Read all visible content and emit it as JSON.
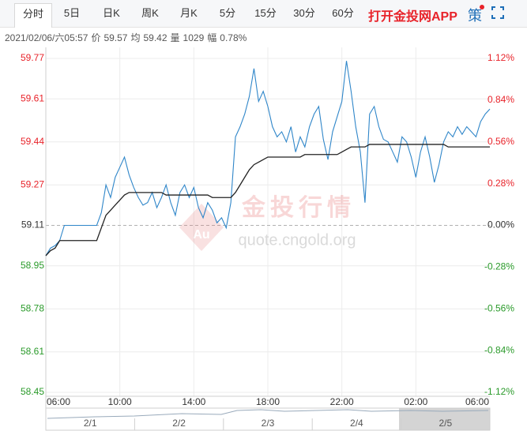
{
  "tabs": [
    "分时",
    "5日",
    "日K",
    "周K",
    "月K",
    "5分",
    "15分",
    "30分",
    "60分"
  ],
  "app_link": "打开金投网APP",
  "strategy_icon": "策",
  "info": {
    "datetime": "2021/02/06/六05:57",
    "items": [
      {
        "label": "价",
        "value": "59.57"
      },
      {
        "label": "均",
        "value": "59.42"
      },
      {
        "label": "量",
        "value": "1029"
      },
      {
        "label": "幅",
        "value": "0.78%"
      }
    ]
  },
  "watermark": {
    "title": "金投行情",
    "url": "quote.cngold.org",
    "logo": "Au"
  },
  "navigator": {
    "labels": [
      "2/1",
      "2/2",
      "2/3",
      "2/4",
      "2/5"
    ]
  },
  "chart_data": {
    "type": "line",
    "categories": [
      "06:00",
      null,
      null,
      null,
      null,
      null,
      null,
      null,
      null,
      null,
      null,
      null,
      null,
      null,
      null,
      null,
      "10:00",
      null,
      null,
      null,
      null,
      null,
      null,
      null,
      null,
      null,
      null,
      null,
      null,
      null,
      null,
      null,
      "14:00",
      null,
      null,
      null,
      null,
      null,
      null,
      null,
      null,
      null,
      null,
      null,
      null,
      null,
      null,
      null,
      "18:00",
      null,
      null,
      null,
      null,
      null,
      null,
      null,
      null,
      null,
      null,
      null,
      null,
      null,
      null,
      null,
      "22:00",
      null,
      null,
      null,
      null,
      null,
      null,
      null,
      null,
      null,
      null,
      null,
      null,
      null,
      null,
      null,
      "02:00",
      null,
      null,
      null,
      null,
      null,
      null,
      null,
      null,
      null,
      null,
      null,
      null,
      null,
      null,
      null,
      "06:00"
    ],
    "series": [
      {
        "color": "#2f86c9",
        "values": [
          58.99,
          59.02,
          59.03,
          59.05,
          59.11,
          59.11,
          59.11,
          59.11,
          59.11,
          59.11,
          59.11,
          59.11,
          59.16,
          59.27,
          59.22,
          59.3,
          59.34,
          59.38,
          59.31,
          59.26,
          59.22,
          59.19,
          59.2,
          59.24,
          59.18,
          59.22,
          59.27,
          59.2,
          59.15,
          59.24,
          59.27,
          59.22,
          59.26,
          59.18,
          59.14,
          59.2,
          59.17,
          59.12,
          59.14,
          59.1,
          59.2,
          59.46,
          59.5,
          59.55,
          59.62,
          59.73,
          59.6,
          59.64,
          59.58,
          59.5,
          59.46,
          59.48,
          59.44,
          59.5,
          59.4,
          59.46,
          59.42,
          59.5,
          59.55,
          59.58,
          59.45,
          59.37,
          59.48,
          59.54,
          59.6,
          59.76,
          59.64,
          59.5,
          59.4,
          59.2,
          59.55,
          59.58,
          59.5,
          59.45,
          59.44,
          59.4,
          59.36,
          59.46,
          59.44,
          59.38,
          59.3,
          59.4,
          59.46,
          59.38,
          59.28,
          59.35,
          59.44,
          59.48,
          59.46,
          59.5,
          59.47,
          59.5,
          59.48,
          59.46,
          59.52,
          59.55,
          59.57
        ]
      },
      {
        "color": "#222222",
        "values": [
          58.99,
          59.01,
          59.02,
          59.05,
          59.05,
          59.05,
          59.05,
          59.05,
          59.05,
          59.05,
          59.05,
          59.05,
          59.1,
          59.15,
          59.17,
          59.19,
          59.21,
          59.23,
          59.24,
          59.24,
          59.24,
          59.24,
          59.24,
          59.24,
          59.24,
          59.24,
          59.23,
          59.23,
          59.23,
          59.23,
          59.23,
          59.23,
          59.23,
          59.23,
          59.23,
          59.23,
          59.22,
          59.22,
          59.22,
          59.22,
          59.22,
          59.24,
          59.27,
          59.3,
          59.33,
          59.35,
          59.36,
          59.37,
          59.38,
          59.38,
          59.38,
          59.38,
          59.38,
          59.38,
          59.38,
          59.38,
          59.39,
          59.39,
          59.39,
          59.39,
          59.39,
          59.39,
          59.39,
          59.39,
          59.4,
          59.41,
          59.42,
          59.42,
          59.42,
          59.42,
          59.43,
          59.43,
          59.43,
          59.43,
          59.43,
          59.43,
          59.43,
          59.43,
          59.43,
          59.43,
          59.43,
          59.43,
          59.43,
          59.43,
          59.43,
          59.43,
          59.43,
          59.42,
          59.42,
          59.42,
          59.42,
          59.42,
          59.42,
          59.42,
          59.42,
          59.42,
          59.42
        ]
      }
    ],
    "ylim": [
      58.45,
      59.77
    ],
    "yticks": [
      59.77,
      59.61,
      59.44,
      59.27,
      59.11,
      58.95,
      58.78,
      58.61,
      58.45
    ],
    "y2lim": [
      -1.12,
      1.12
    ],
    "y2ticks": [
      {
        "value": 1.12,
        "label": "1.12%"
      },
      {
        "value": 0.84,
        "label": "0.84%"
      },
      {
        "value": 0.56,
        "label": "0.56%"
      },
      {
        "value": 0.28,
        "label": "0.28%"
      },
      {
        "value": 0.0,
        "label": "0.00%"
      },
      {
        "value": -0.28,
        "label": "-0.28%"
      },
      {
        "value": -0.56,
        "label": "-0.56%"
      },
      {
        "value": -0.84,
        "label": "-0.84%"
      },
      {
        "value": -1.12,
        "label": "-1.12%"
      }
    ],
    "up_color": "#e8232a",
    "down_color": "#2a9a2a",
    "grid": true
  }
}
